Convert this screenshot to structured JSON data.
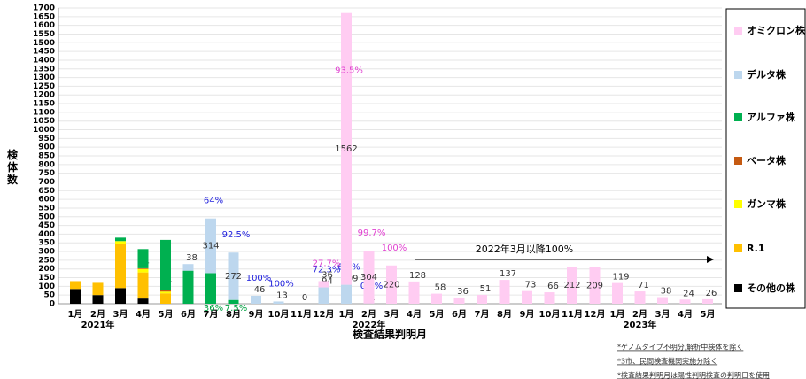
{
  "chart_data": {
    "type": "stacked-bar",
    "y_label": "検体数",
    "x_label": "検査結果判明月",
    "categories": [
      "1月",
      "2月",
      "3月",
      "4月",
      "5月",
      "6月",
      "7月",
      "8月",
      "9月",
      "10月",
      "11月",
      "12月",
      "1月",
      "2月",
      "3月",
      "4月",
      "5月",
      "6月",
      "7月",
      "8月",
      "9月",
      "10月",
      "11月",
      "12月",
      "1月",
      "2月",
      "3月",
      "4月",
      "5月"
    ],
    "year_labels": [
      null,
      "2021年",
      null,
      null,
      null,
      null,
      null,
      null,
      null,
      null,
      null,
      null,
      null,
      "2022年",
      null,
      null,
      null,
      null,
      null,
      null,
      null,
      null,
      null,
      null,
      null,
      "2023年",
      null,
      null,
      null
    ],
    "ylim": [
      0,
      1700
    ],
    "yticks": [
      0,
      50,
      100,
      150,
      200,
      250,
      300,
      350,
      400,
      450,
      500,
      550,
      600,
      650,
      700,
      750,
      800,
      850,
      900,
      950,
      1000,
      1050,
      1100,
      1150,
      1200,
      1250,
      1300,
      1350,
      1400,
      1450,
      1500,
      1550,
      1600,
      1650,
      1700
    ],
    "grid": true,
    "series": [
      {
        "name": "オミクロン株",
        "color": "#ffccf2",
        "show_values": true,
        "label_color": "#e040d0",
        "values": [
          null,
          null,
          null,
          null,
          null,
          null,
          null,
          null,
          null,
          null,
          null,
          36,
          1562,
          304,
          220,
          128,
          58,
          36,
          51,
          137,
          73,
          66,
          212,
          209,
          119,
          71,
          38,
          24,
          26
        ],
        "percent_labels": [
          null,
          null,
          null,
          null,
          null,
          null,
          null,
          null,
          null,
          null,
          null,
          "27.7%",
          "93.5%",
          "99.7%",
          "100%",
          null,
          null,
          null,
          null,
          null,
          null,
          null,
          null,
          null,
          null,
          null,
          null,
          null,
          null
        ]
      },
      {
        "name": "デルタ株",
        "color": "#bdd7ee",
        "show_values": true,
        "label_color": "#2222dd",
        "values": [
          null,
          null,
          null,
          null,
          null,
          38,
          314,
          272,
          46,
          13,
          0,
          94,
          109,
          1,
          null,
          null,
          null,
          null,
          null,
          null,
          null,
          null,
          null,
          null,
          null,
          null,
          null,
          null,
          null
        ],
        "percent_labels": [
          null,
          null,
          null,
          null,
          null,
          null,
          "64%",
          "92.5%",
          "100%",
          "100%",
          null,
          "72.3%",
          "6.5%",
          "0.3%",
          null,
          null,
          null,
          null,
          null,
          null,
          null,
          null,
          null,
          null,
          null,
          null,
          null,
          null,
          null
        ]
      },
      {
        "name": "アルファ株",
        "color": "#00b050",
        "show_values": false,
        "label_color": "#00a040",
        "values": [
          null,
          null,
          20,
          110,
          290,
          190,
          176,
          22,
          null,
          null,
          null,
          null,
          null,
          null,
          null,
          null,
          null,
          null,
          null,
          null,
          null,
          null,
          null,
          null,
          null,
          null,
          null,
          null,
          null
        ],
        "percent_labels": [
          null,
          null,
          null,
          null,
          null,
          null,
          "36%",
          "7.5%",
          null,
          null,
          null,
          null,
          null,
          null,
          null,
          null,
          null,
          null,
          null,
          null,
          null,
          null,
          null,
          null,
          null,
          null,
          null,
          null,
          null
        ]
      },
      {
        "name": "ベータ株",
        "color": "#c55a11",
        "show_values": true,
        "label_color": "#333333",
        "values": [
          null,
          null,
          null,
          4,
          7,
          null,
          null,
          null,
          null,
          null,
          null,
          null,
          null,
          null,
          null,
          null,
          null,
          null,
          null,
          null,
          null,
          null,
          null,
          null,
          null,
          null,
          null,
          null,
          null
        ]
      },
      {
        "name": "ガンマ株",
        "color": "#ffff00",
        "show_values": false,
        "values": [
          null,
          null,
          15,
          20,
          10,
          null,
          null,
          null,
          null,
          null,
          null,
          null,
          null,
          null,
          null,
          null,
          null,
          null,
          null,
          null,
          null,
          null,
          null,
          null,
          null,
          null,
          null,
          null,
          null
        ]
      },
      {
        "name": "R.1",
        "color": "#ffc000",
        "show_values": false,
        "values": [
          45,
          70,
          255,
          150,
          60,
          null,
          null,
          null,
          null,
          null,
          null,
          null,
          null,
          null,
          null,
          null,
          null,
          null,
          null,
          null,
          null,
          null,
          null,
          null,
          null,
          null,
          null,
          null,
          null
        ]
      },
      {
        "name": "その他の株",
        "color": "#000000",
        "show_values": false,
        "values": [
          85,
          50,
          90,
          30,
          null,
          null,
          null,
          null,
          null,
          null,
          null,
          null,
          null,
          null,
          null,
          null,
          null,
          null,
          null,
          null,
          null,
          null,
          null,
          null,
          null,
          null,
          null,
          null,
          null
        ]
      }
    ],
    "arrow_annotation": "2022年3月以降100%",
    "footnotes": [
      "*ゲノムタイプ不明分,解析中検体を除く",
      "*3市、民間検査機関実施分除く",
      "*検査結果判明月は陽性判明検査の判明日を使用"
    ]
  }
}
